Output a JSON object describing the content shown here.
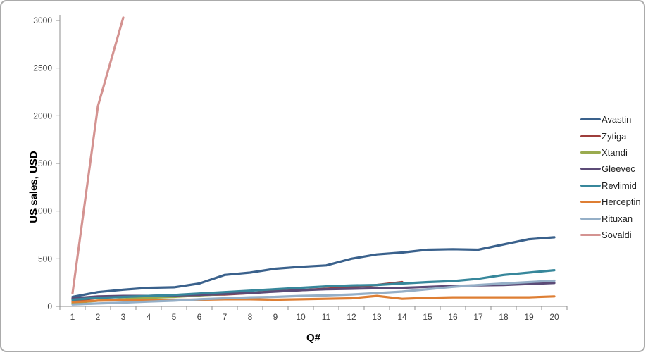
{
  "chart_data": {
    "type": "line",
    "title": "",
    "xlabel": "Q#",
    "ylabel": "US sales, USD",
    "x_categories": [
      "1",
      "2",
      "3",
      "4",
      "5",
      "6",
      "7",
      "8",
      "9",
      "10",
      "11",
      "12",
      "13",
      "14",
      "15",
      "16",
      "17",
      "18",
      "19",
      "20"
    ],
    "y_ticks": [
      0,
      500,
      1000,
      1500,
      2000,
      2500,
      3000
    ],
    "ylim": [
      0,
      3000
    ],
    "grid": false,
    "legend_position": "right",
    "series": [
      {
        "name": "Avastin",
        "color": "#3a618c",
        "values": [
          100,
          150,
          175,
          195,
          200,
          240,
          330,
          355,
          395,
          415,
          430,
          500,
          545,
          565,
          595,
          600,
          595,
          650,
          705,
          725
        ]
      },
      {
        "name": "Zytiga",
        "color": "#9e3d3b",
        "values": [
          55,
          90,
          100,
          110,
          115,
          120,
          125,
          140,
          160,
          170,
          185,
          200,
          225,
          255
        ]
      },
      {
        "name": "Xtandi",
        "color": "#9aab4f",
        "values": [
          35,
          60,
          75,
          90,
          100,
          115,
          130,
          150
        ]
      },
      {
        "name": "Gleevec",
        "color": "#5c4b77",
        "values": [
          85,
          105,
          110,
          110,
          115,
          120,
          130,
          140,
          155,
          170,
          180,
          185,
          190,
          195,
          205,
          215,
          220,
          225,
          235,
          245
        ]
      },
      {
        "name": "Revlimid",
        "color": "#37879b",
        "values": [
          70,
          90,
          100,
          110,
          120,
          135,
          150,
          165,
          180,
          195,
          210,
          220,
          225,
          240,
          255,
          265,
          290,
          330,
          355,
          380
        ]
      },
      {
        "name": "Herceptin",
        "color": "#de7e33",
        "values": [
          45,
          60,
          65,
          65,
          70,
          70,
          75,
          75,
          70,
          75,
          80,
          85,
          110,
          80,
          90,
          95,
          95,
          95,
          95,
          105
        ]
      },
      {
        "name": "Rituxan",
        "color": "#95afc7",
        "values": [
          20,
          30,
          40,
          50,
          60,
          75,
          85,
          95,
          100,
          110,
          115,
          125,
          140,
          155,
          180,
          205,
          225,
          240,
          255,
          270
        ]
      },
      {
        "name": "Sovaldi",
        "color": "#d49391",
        "values": [
          140,
          2100,
          3030
        ]
      }
    ],
    "axis_color": "#8c8c8c",
    "tick_label_color": "#3f3f3f"
  }
}
